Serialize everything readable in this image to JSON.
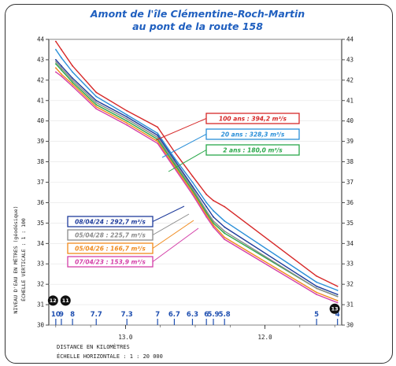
{
  "chart_data": {
    "type": "line",
    "title_line1": "Amont de l'île Clémentine-Roch-Martin",
    "title_line2": "au pont de la route 158",
    "ylabel_line1": "NIVEAU D'EAU EN MÈTRES (géodésique)",
    "ylabel_line2": "ÉCHELLE VERTICALE : 1 : 100",
    "xlabel_line1": "DISTANCE EN KILOMÈTRES",
    "xlabel_line2": "ÉCHELLE HORIZONTALE : 1 : 20 000",
    "ylim": [
      30,
      44
    ],
    "yticks": [
      30,
      31,
      32,
      33,
      34,
      35,
      36,
      37,
      38,
      39,
      40,
      41,
      42,
      43,
      44
    ],
    "xlim": [
      13.55,
      11.45
    ],
    "xticks": [
      {
        "value": 13.0,
        "label": "13.0"
      },
      {
        "value": 12.0,
        "label": "12.0"
      }
    ],
    "stations": [
      {
        "label": "10",
        "km": 13.5
      },
      {
        "label": "9",
        "km": 13.46
      },
      {
        "label": "8",
        "km": 13.38
      },
      {
        "label": "7.7",
        "km": 13.21
      },
      {
        "label": "7.3",
        "km": 12.99
      },
      {
        "label": "7",
        "km": 12.77
      },
      {
        "label": "6.7",
        "km": 12.65
      },
      {
        "label": "6.3",
        "km": 12.52
      },
      {
        "label": "6",
        "km": 12.42
      },
      {
        "label": "5.9",
        "km": 12.37
      },
      {
        "label": "5.8",
        "km": 12.29
      },
      {
        "label": "5",
        "km": 11.63
      },
      {
        "label": "4",
        "km": 11.48
      }
    ],
    "markers": [
      {
        "label": "12",
        "km": 13.52,
        "level": 31.2
      },
      {
        "label": "11",
        "km": 13.43,
        "level": 31.2
      },
      {
        "label": "13",
        "km": 11.5,
        "level": 30.8
      }
    ],
    "x": [
      13.5,
      13.46,
      13.38,
      13.21,
      12.99,
      12.77,
      12.65,
      12.52,
      12.42,
      12.37,
      12.29,
      11.63,
      11.48
    ],
    "series": [
      {
        "name": "100 ans : 394,2 m³/s",
        "color": "#d62828",
        "values": [
          43.9,
          43.5,
          42.7,
          41.4,
          40.5,
          39.7,
          38.5,
          37.3,
          36.4,
          36.1,
          35.8,
          32.4,
          31.9
        ]
      },
      {
        "name": "20 ans : 328,3 m³/s",
        "color": "#2a8fd8",
        "values": [
          43.5,
          43.1,
          42.4,
          41.2,
          40.3,
          39.4,
          38.2,
          37.0,
          36.0,
          35.6,
          35.1,
          32.1,
          31.7
        ]
      },
      {
        "name": "2 ans : 180,0 m³/s",
        "color": "#2aa84a",
        "values": [
          42.8,
          42.5,
          41.9,
          40.8,
          40.0,
          39.1,
          37.9,
          36.6,
          35.5,
          35.0,
          34.5,
          31.8,
          31.4
        ]
      },
      {
        "name": "08/04/24 : 292,7 m³/s",
        "color": "#1f3c9c",
        "values": [
          43.0,
          42.7,
          42.1,
          41.0,
          40.2,
          39.3,
          38.1,
          36.8,
          35.8,
          35.3,
          34.8,
          31.9,
          31.5
        ]
      },
      {
        "name": "05/04/28 : 225,7 m³/s",
        "color": "#8a8a8a",
        "values": [
          42.9,
          42.6,
          42.0,
          40.9,
          40.1,
          39.2,
          38.0,
          36.7,
          35.6,
          35.1,
          34.6,
          31.8,
          31.4
        ]
      },
      {
        "name": "05/04/26 : 166,7 m³/s",
        "color": "#f08a1c",
        "values": [
          42.6,
          42.3,
          41.8,
          40.7,
          39.9,
          39.0,
          37.8,
          36.5,
          35.4,
          34.9,
          34.3,
          31.6,
          31.2
        ]
      },
      {
        "name": "07/04/23 : 153,9 m³/s",
        "color": "#d43fa8",
        "values": [
          42.4,
          42.2,
          41.7,
          40.6,
          39.8,
          38.9,
          37.7,
          36.4,
          35.3,
          34.8,
          34.2,
          31.5,
          31.1
        ]
      }
    ]
  }
}
